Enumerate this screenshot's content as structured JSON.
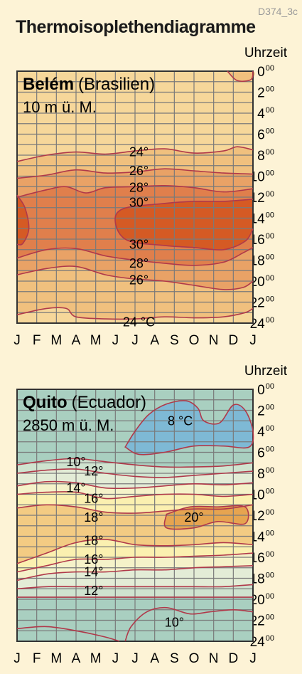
{
  "code": "D374_3c",
  "title": "Thermoisoplethendiagramme",
  "chart_data": [
    {
      "type": "heatmap",
      "place": "Belém",
      "country": "(Brasilien)",
      "altitude": "10 m ü. M.",
      "ylabel": "Uhrzeit",
      "x_ticks": [
        "J",
        "F",
        "M",
        "A",
        "M",
        "J",
        "J",
        "A",
        "S",
        "O",
        "N",
        "D",
        "J"
      ],
      "y_ticks": [
        {
          "h": "0",
          "m": "00"
        },
        {
          "h": "2",
          "m": "00"
        },
        {
          "h": "4",
          "m": "00"
        },
        {
          "h": "6",
          "m": "00"
        },
        {
          "h": "8",
          "m": "00"
        },
        {
          "h": "10",
          "m": "00"
        },
        {
          "h": "12",
          "m": "00"
        },
        {
          "h": "14",
          "m": "00"
        },
        {
          "h": "16",
          "m": "00"
        },
        {
          "h": "18",
          "m": "00"
        },
        {
          "h": "20",
          "m": "00"
        },
        {
          "h": "22",
          "m": "00"
        },
        {
          "h": "24",
          "m": "00"
        }
      ],
      "ylim": [
        0,
        24
      ],
      "xlim": [
        0,
        12
      ],
      "levels": [
        24,
        26,
        28,
        30
      ],
      "isotherm_labels": [
        {
          "text": "24°",
          "hour": 7.8
        },
        {
          "text": "26°",
          "hour": 9.6
        },
        {
          "text": "28°",
          "hour": 11.2
        },
        {
          "text": "30°",
          "hour": 12.6
        },
        {
          "text": "30°",
          "hour": 16.6
        },
        {
          "text": "28°",
          "hour": 18.4
        },
        {
          "text": "26°",
          "hour": 20.0
        },
        {
          "text": "24 °C",
          "hour": 24.0
        }
      ],
      "colors": {
        "below24": "#f6d79a",
        "24": "#f0c07e",
        "26": "#e9a266",
        "28": "#e07f4c",
        "30": "#d55a24",
        "grid": "#7a7a7a",
        "isoline": "#b0394a"
      }
    },
    {
      "type": "heatmap",
      "place": "Quito",
      "country": "(Ecuador)",
      "altitude": "2850 m ü. M.",
      "ylabel": "Uhrzeit",
      "x_ticks": [
        "J",
        "F",
        "M",
        "A",
        "M",
        "J",
        "J",
        "A",
        "S",
        "O",
        "N",
        "D",
        "J"
      ],
      "y_ticks": [
        {
          "h": "0",
          "m": "00"
        },
        {
          "h": "2",
          "m": "00"
        },
        {
          "h": "4",
          "m": "00"
        },
        {
          "h": "6",
          "m": "00"
        },
        {
          "h": "8",
          "m": "00"
        },
        {
          "h": "10",
          "m": "00"
        },
        {
          "h": "12",
          "m": "00"
        },
        {
          "h": "14",
          "m": "00"
        },
        {
          "h": "16",
          "m": "00"
        },
        {
          "h": "18",
          "m": "00"
        },
        {
          "h": "20",
          "m": "00"
        },
        {
          "h": "22",
          "m": "00"
        },
        {
          "h": "24",
          "m": "00"
        }
      ],
      "ylim": [
        0,
        24
      ],
      "xlim": [
        0,
        12
      ],
      "levels": [
        8,
        10,
        12,
        14,
        16,
        18,
        20
      ],
      "isotherm_labels": [
        {
          "text": "8 °C",
          "hour": 3.0
        },
        {
          "text": "10°",
          "hour": 7.0
        },
        {
          "text": "12°",
          "hour": 7.8
        },
        {
          "text": "14°",
          "hour": 9.5
        },
        {
          "text": "16°",
          "hour": 10.4
        },
        {
          "text": "18°",
          "hour": 12.2
        },
        {
          "text": "20°",
          "hour": 12.2
        },
        {
          "text": "18°",
          "hour": 14.4
        },
        {
          "text": "16°",
          "hour": 16.2
        },
        {
          "text": "14°",
          "hour": 17.4
        },
        {
          "text": "12°",
          "hour": 19.2
        },
        {
          "text": "10°",
          "hour": 22.2
        }
      ],
      "colors": {
        "below10": "#a9cfc0",
        "8": "#7eb9d5",
        "10": "#cfe3cf",
        "12": "#e3ecd6",
        "14": "#f5f2c9",
        "16": "#fbf0b0",
        "18": "#f3cb83",
        "20": "#e6a450",
        "grid": "#7a7a7a",
        "isoline": "#b0394a"
      }
    }
  ]
}
